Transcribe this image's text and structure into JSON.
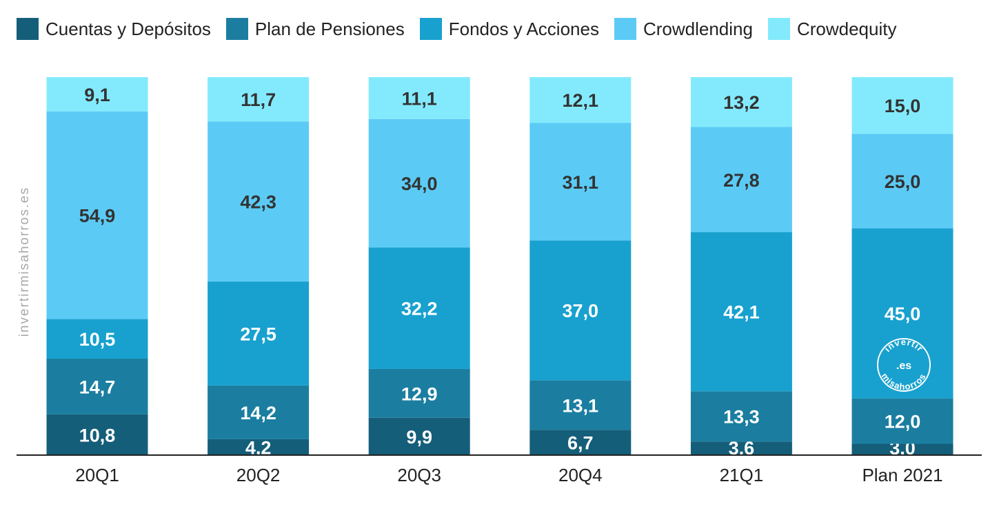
{
  "legend": [
    {
      "label": "Cuentas y Depósitos",
      "color": "#155E7A"
    },
    {
      "label": "Plan de Pensiones",
      "color": "#1B7EA0"
    },
    {
      "label": "Fondos y Acciones",
      "color": "#18A1CF"
    },
    {
      "label": "Crowdlending",
      "color": "#5BCBF6"
    },
    {
      "label": "Crowdequity",
      "color": "#83EAFD"
    }
  ],
  "watermark": "invertirmisahorros.es",
  "logo": {
    "top": "invertir",
    "middle": ".es",
    "bottom": "misahorros"
  },
  "chart_data": {
    "type": "bar",
    "stacked": true,
    "normalized_percent": true,
    "categories": [
      "20Q1",
      "20Q2",
      "20Q3",
      "20Q4",
      "21Q1",
      "Plan 2021"
    ],
    "series": [
      {
        "name": "Cuentas y Depósitos",
        "color": "#155E7A",
        "values": [
          10.8,
          4.2,
          9.9,
          6.7,
          3.6,
          3.0
        ],
        "labels": [
          "10,8",
          "4,2",
          "9,9",
          "6,7",
          "3,6",
          "3,0"
        ]
      },
      {
        "name": "Plan de Pensiones",
        "color": "#1B7EA0",
        "values": [
          14.7,
          14.2,
          12.9,
          13.1,
          13.3,
          12.0
        ],
        "labels": [
          "14,7",
          "14,2",
          "12,9",
          "13,1",
          "13,3",
          "12,0"
        ]
      },
      {
        "name": "Fondos y Acciones",
        "color": "#18A1CF",
        "values": [
          10.5,
          27.5,
          32.2,
          37.0,
          42.1,
          45.0
        ],
        "labels": [
          "10,5",
          "27,5",
          "32,2",
          "37,0",
          "42,1",
          "45,0"
        ]
      },
      {
        "name": "Crowdlending",
        "color": "#5BCBF6",
        "values": [
          54.9,
          42.3,
          34.0,
          31.1,
          27.8,
          25.0
        ],
        "labels": [
          "54,9",
          "42,3",
          "34,0",
          "31,1",
          "27,8",
          "25,0"
        ]
      },
      {
        "name": "Crowdequity",
        "color": "#83EAFD",
        "values": [
          9.1,
          11.7,
          11.1,
          12.1,
          13.2,
          15.0
        ],
        "labels": [
          "9,1",
          "11,7",
          "11,1",
          "12,1",
          "13,2",
          "15,0"
        ]
      }
    ],
    "title": "",
    "xlabel": "",
    "ylabel": "",
    "ylim": [
      0,
      100
    ],
    "grid": false,
    "legend_position": "top"
  }
}
